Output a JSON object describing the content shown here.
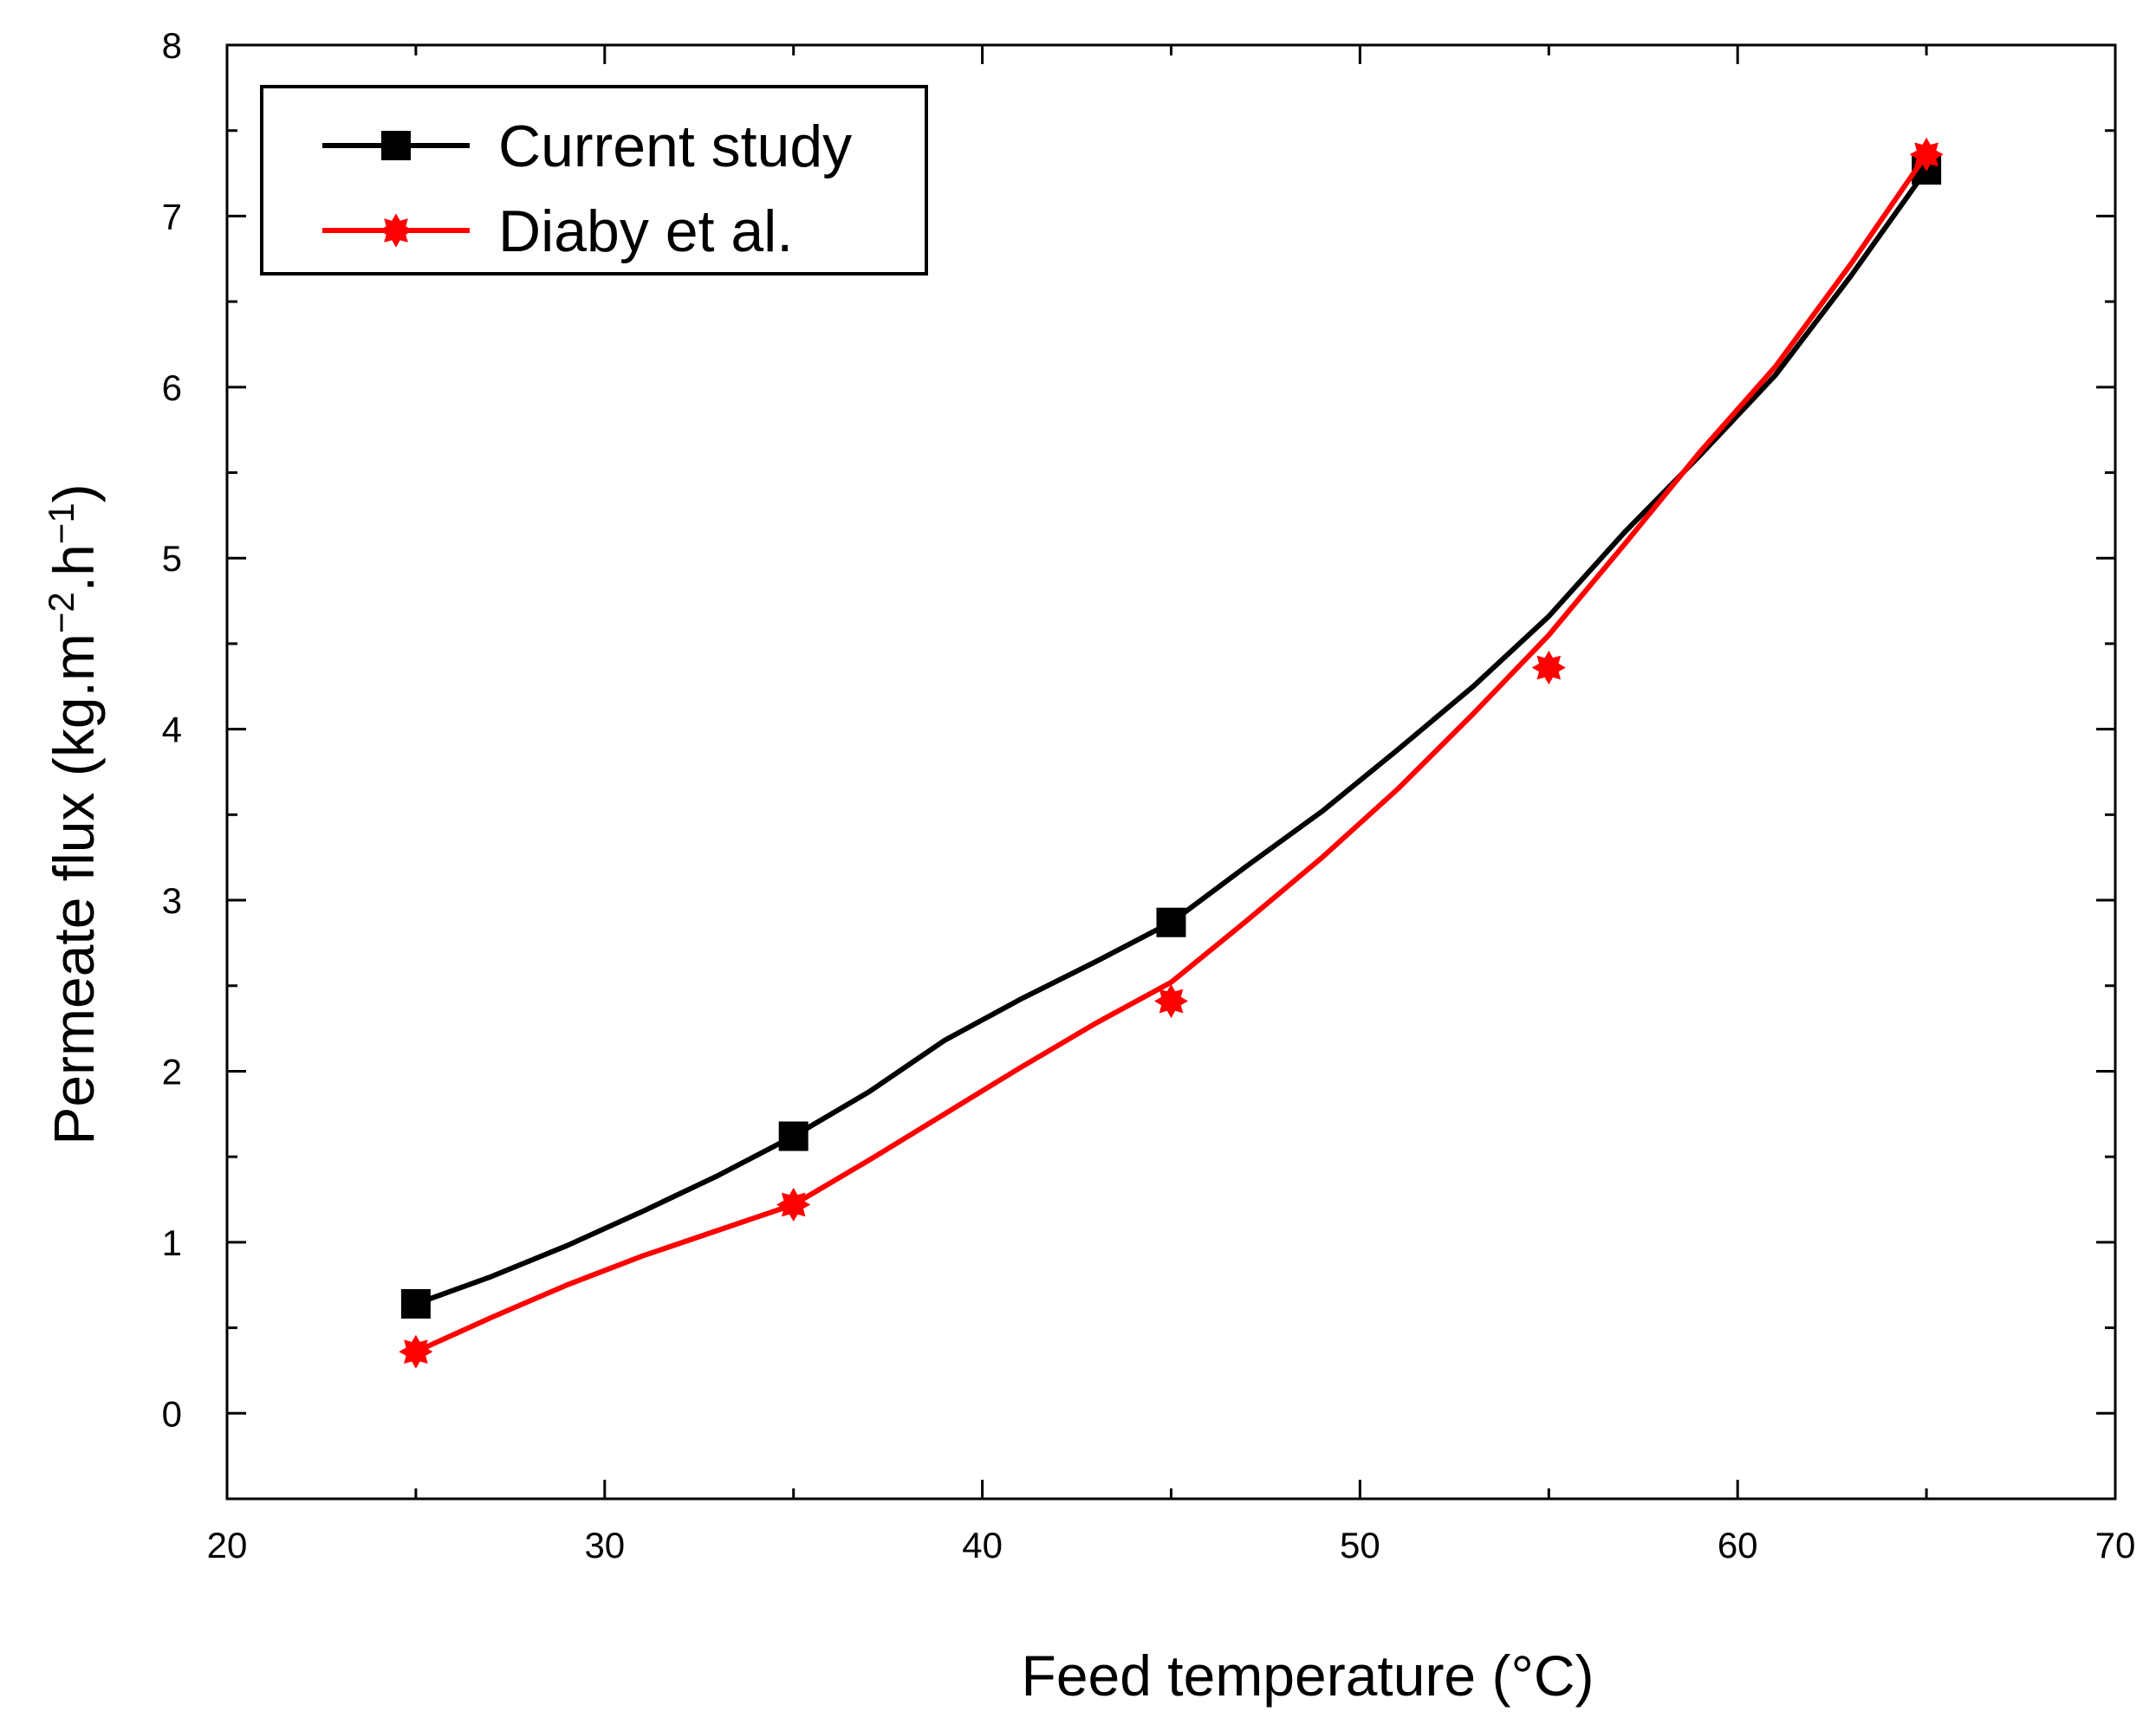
{
  "chart_data": {
    "type": "line",
    "title": "",
    "xlabel": "Feed temperature (°C)",
    "ylabel": {
      "prefix": "Permeate flux (kg.m",
      "sup1": "−2",
      "middle": ".h",
      "sup2": "−1",
      "suffix": ")"
    },
    "xlim": [
      20,
      70
    ],
    "ylim": [
      -0.5,
      8
    ],
    "x_ticks": [
      20,
      30,
      40,
      50,
      60,
      70
    ],
    "y_ticks": [
      0,
      1,
      2,
      3,
      4,
      5,
      6,
      7,
      8
    ],
    "grid": false,
    "legend_position": "top-left",
    "series": [
      {
        "name": "Current study",
        "color": "#000000",
        "marker": "square",
        "points": [
          {
            "x": 25,
            "y": 0.64
          },
          {
            "x": 35,
            "y": 1.62
          },
          {
            "x": 45,
            "y": 2.87
          },
          {
            "x": 65,
            "y": 7.27
          }
        ],
        "curve": [
          [
            25,
            0.64
          ],
          [
            27,
            0.8
          ],
          [
            29,
            0.98
          ],
          [
            31,
            1.18
          ],
          [
            33,
            1.39
          ],
          [
            35,
            1.62
          ],
          [
            37,
            1.88
          ],
          [
            39,
            2.18
          ],
          [
            41,
            2.42
          ],
          [
            43,
            2.64
          ],
          [
            45,
            2.87
          ],
          [
            47,
            3.2
          ],
          [
            49,
            3.52
          ],
          [
            51,
            3.88
          ],
          [
            53,
            4.25
          ],
          [
            55,
            4.66
          ],
          [
            57,
            5.15
          ],
          [
            59,
            5.6
          ],
          [
            61,
            6.07
          ],
          [
            63,
            6.65
          ],
          [
            65,
            7.27
          ]
        ]
      },
      {
        "name": "Diaby et al.",
        "color": "#ff0000",
        "marker": "star",
        "points": [
          {
            "x": 25,
            "y": 0.36
          },
          {
            "x": 35,
            "y": 1.22
          },
          {
            "x": 45,
            "y": 2.41
          },
          {
            "x": 55,
            "y": 4.36
          },
          {
            "x": 65,
            "y": 7.36
          }
        ],
        "curve": [
          [
            25,
            0.36
          ],
          [
            27,
            0.56
          ],
          [
            29,
            0.75
          ],
          [
            31,
            0.92
          ],
          [
            33,
            1.07
          ],
          [
            35,
            1.22
          ],
          [
            37,
            1.48
          ],
          [
            39,
            1.75
          ],
          [
            41,
            2.02
          ],
          [
            43,
            2.28
          ],
          [
            45,
            2.52
          ],
          [
            47,
            2.88
          ],
          [
            49,
            3.25
          ],
          [
            51,
            3.65
          ],
          [
            53,
            4.09
          ],
          [
            55,
            4.55
          ],
          [
            57,
            5.08
          ],
          [
            59,
            5.62
          ],
          [
            61,
            6.12
          ],
          [
            63,
            6.72
          ],
          [
            65,
            7.36
          ]
        ]
      }
    ]
  }
}
